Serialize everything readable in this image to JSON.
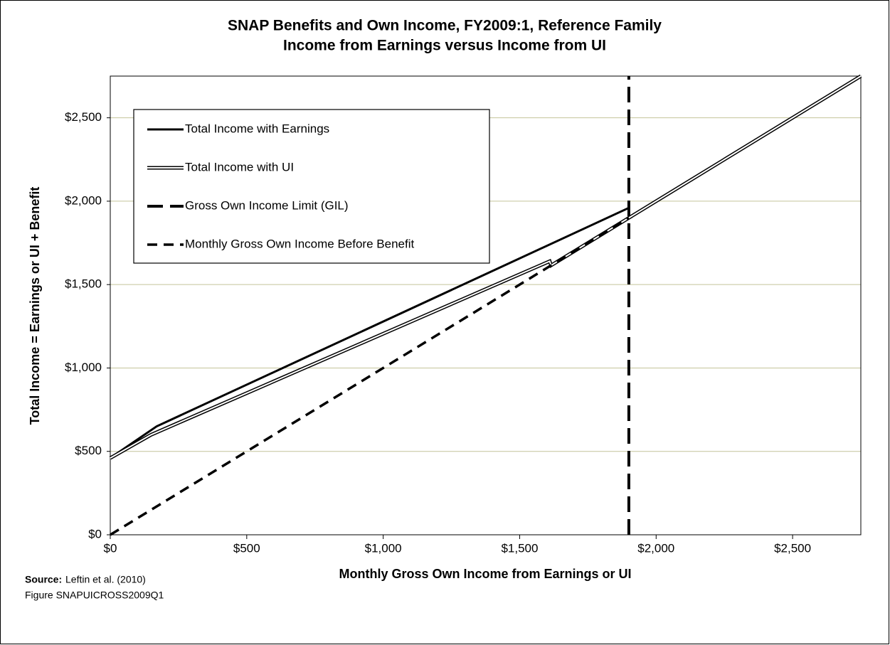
{
  "chart_data": {
    "type": "line",
    "title": "SNAP Benefits and Own Income, FY2009:1, Reference Family",
    "subtitle": "Income from Earnings versus Income from UI",
    "x_label": "Monthly Gross Own Income from Earnings or UI",
    "y_label": "Total Income = Earnings or UI + Benefit",
    "xlim": [
      0,
      2750
    ],
    "ylim": [
      0,
      2750
    ],
    "xticks": [
      {
        "value": 0,
        "label": "$0"
      },
      {
        "value": 500,
        "label": "$500"
      },
      {
        "value": 1000,
        "label": "$1,000"
      },
      {
        "value": 1500,
        "label": "$1,500"
      },
      {
        "value": 2000,
        "label": "$2,000"
      },
      {
        "value": 2500,
        "label": "$2,500"
      }
    ],
    "yticks": [
      {
        "value": 0,
        "label": "$0"
      },
      {
        "value": 500,
        "label": "$500"
      },
      {
        "value": 1000,
        "label": "$1,000"
      },
      {
        "value": 1500,
        "label": "$1,500"
      },
      {
        "value": 2000,
        "label": "$2,000"
      },
      {
        "value": 2500,
        "label": "$2,500"
      }
    ],
    "grid": true,
    "grid_color": "#c4c49a",
    "series": [
      {
        "name": "Total Income with Earnings",
        "color": "#000000",
        "style": "solid",
        "x": [
          0,
          170,
          1900,
          1900,
          2750
        ],
        "values": [
          460,
          650,
          1960,
          1900,
          2750
        ]
      },
      {
        "name": "Total Income with UI",
        "color": "#000000",
        "style": "double",
        "x": [
          0,
          150,
          1610,
          1615,
          1900,
          2750
        ],
        "values": [
          460,
          600,
          1640,
          1615,
          1900,
          2750
        ]
      },
      {
        "name": "Gross Own Income Limit (GIL)",
        "color": "#000000",
        "style": "longdash",
        "x": [
          1900,
          1900
        ],
        "values": [
          0,
          2750
        ]
      },
      {
        "name": "Monthly Gross Own Income Before Benefit",
        "color": "#000000",
        "style": "dash",
        "x": [
          0,
          1900
        ],
        "values": [
          0,
          1900
        ]
      }
    ],
    "source_label": "Source:",
    "source": "Leftin et al.  (2010)",
    "figure_id": "Figure SNAPUICROSS2009Q1"
  }
}
